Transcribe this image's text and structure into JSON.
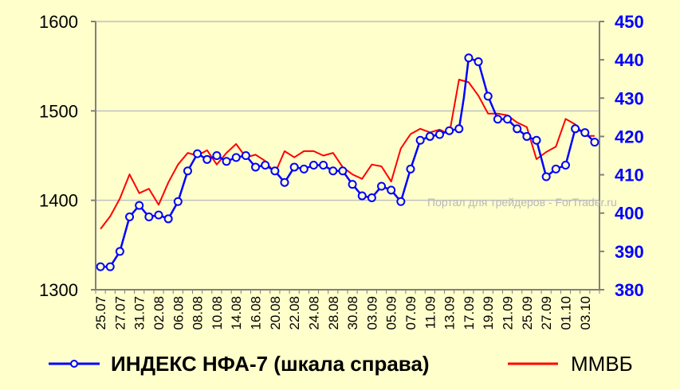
{
  "chart_data": {
    "type": "line",
    "watermark": "Портал для трейдеров - ForTrader.ru",
    "colors": {
      "background": "#FFFFCC",
      "index_line": "#0000FF",
      "micex_line": "#FF0000",
      "grid": "#C0C0C0",
      "right_axis_text": "#0000FF",
      "left_axis_text": "#000000"
    },
    "y_left": {
      "min": 1300,
      "max": 1600,
      "ticks": [
        "1300",
        "1400",
        "1500",
        "1600"
      ]
    },
    "y_right": {
      "min": 380,
      "max": 450,
      "ticks": [
        "380",
        "390",
        "400",
        "410",
        "420",
        "430",
        "440",
        "450"
      ]
    },
    "x_labels": [
      "25.07",
      "27.07",
      "31.07",
      "02.08",
      "06.08",
      "08.08",
      "10.08",
      "14.08",
      "16.08",
      "20.08",
      "22.08",
      "24.08",
      "28.08",
      "30.08",
      "03.09",
      "05.09",
      "07.09",
      "11.09",
      "13.09",
      "17.09",
      "19.09",
      "21.09",
      "25.09",
      "27.09",
      "01.10",
      "03.10"
    ],
    "series": [
      {
        "name": "ИНДЕКС НФА-7 (шкала справа)",
        "axis": "right",
        "marker": "circle",
        "points": [
          [
            0,
            386
          ],
          [
            1,
            386
          ],
          [
            2,
            390
          ],
          [
            3,
            399
          ],
          [
            4,
            402
          ],
          [
            5,
            399
          ],
          [
            6,
            399.5
          ],
          [
            7,
            398.5
          ],
          [
            8,
            403
          ],
          [
            9,
            411
          ],
          [
            10,
            415.5
          ],
          [
            11,
            414
          ],
          [
            12,
            415
          ],
          [
            13,
            413.5
          ],
          [
            14,
            414.5
          ],
          [
            15,
            415
          ],
          [
            16,
            412
          ],
          [
            17,
            412.5
          ],
          [
            18,
            411
          ],
          [
            19,
            408
          ],
          [
            20,
            412
          ],
          [
            21,
            411.5
          ],
          [
            22,
            412.5
          ],
          [
            23,
            412.5
          ],
          [
            24,
            411
          ],
          [
            25,
            411
          ],
          [
            26,
            407.5
          ],
          [
            27,
            404.5
          ],
          [
            28,
            404
          ],
          [
            29,
            407
          ],
          [
            30,
            406
          ],
          [
            31,
            403
          ],
          [
            32,
            411.5
          ],
          [
            33,
            419
          ],
          [
            34,
            420
          ],
          [
            35,
            420.5
          ],
          [
            36,
            421.5
          ],
          [
            37,
            422
          ],
          [
            37.5,
            430
          ],
          [
            38,
            440.5
          ],
          [
            39,
            439.5
          ],
          [
            40,
            430.5
          ],
          [
            41,
            424.5
          ],
          [
            42,
            424.5
          ],
          [
            43,
            422
          ],
          [
            44,
            420
          ],
          [
            45,
            419
          ],
          [
            46,
            409.5
          ],
          [
            47,
            411.5
          ],
          [
            48,
            412.5
          ],
          [
            49,
            422
          ],
          [
            50,
            421
          ],
          [
            51,
            418.5
          ]
        ]
      },
      {
        "name": "ММВБ",
        "axis": "left",
        "marker": "none",
        "points": [
          [
            0,
            1368
          ],
          [
            1,
            1382
          ],
          [
            2,
            1402
          ],
          [
            3,
            1429
          ],
          [
            4,
            1408
          ],
          [
            5,
            1413
          ],
          [
            6,
            1395
          ],
          [
            7,
            1420
          ],
          [
            8,
            1440
          ],
          [
            9,
            1453
          ],
          [
            10,
            1450
          ],
          [
            11,
            1456
          ],
          [
            12,
            1440
          ],
          [
            13,
            1453
          ],
          [
            14,
            1463
          ],
          [
            15,
            1448
          ],
          [
            16,
            1451
          ],
          [
            17,
            1444
          ],
          [
            18,
            1430
          ],
          [
            19,
            1455
          ],
          [
            20,
            1448
          ],
          [
            21,
            1455
          ],
          [
            22,
            1455
          ],
          [
            23,
            1450
          ],
          [
            24,
            1453
          ],
          [
            25,
            1437
          ],
          [
            26,
            1429
          ],
          [
            27,
            1424
          ],
          [
            28,
            1440
          ],
          [
            29,
            1438
          ],
          [
            30,
            1421
          ],
          [
            31,
            1458
          ],
          [
            32,
            1474
          ],
          [
            33,
            1480
          ],
          [
            34,
            1476
          ],
          [
            35,
            1479
          ],
          [
            36,
            1474
          ],
          [
            37,
            1535
          ],
          [
            38,
            1532
          ],
          [
            39,
            1517
          ],
          [
            40,
            1497
          ],
          [
            41,
            1497
          ],
          [
            42,
            1495
          ],
          [
            43,
            1487
          ],
          [
            44,
            1482
          ],
          [
            45,
            1446
          ],
          [
            46,
            1454
          ],
          [
            47,
            1460
          ],
          [
            48,
            1491
          ],
          [
            49,
            1485
          ],
          [
            50,
            1472
          ],
          [
            51,
            1472
          ]
        ]
      }
    ]
  }
}
